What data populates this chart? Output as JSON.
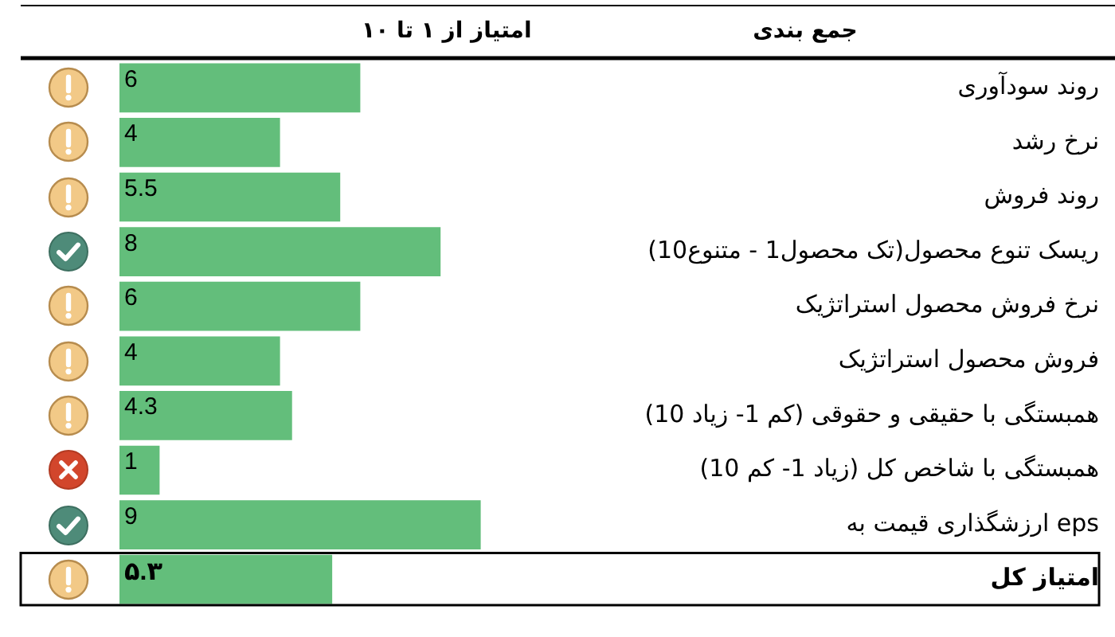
{
  "chart_data": {
    "type": "bar",
    "orientation": "horizontal",
    "xlabel": "امتیاز از ۱ تا ۱۰",
    "ylabel": "جمع بندی",
    "categories": [
      "روند سودآوری",
      "نرخ رشد",
      "روند فروش",
      "ریسک تنوع محصول(تک محصول1 - متنوع10)",
      "نرخ فروش محصول استراتژیک",
      "فروش محصول استراتژیک",
      "همبستگی با حقیقی و حقوقی (کم 1- زیاد 10)",
      "همبستگی با شاخص کل (زیاد 1- کم 10)",
      "ارزشگذاری قیمت به eps",
      "امتیاز کل"
    ],
    "values": [
      6,
      4,
      5.5,
      8,
      6,
      4,
      4.3,
      1,
      9,
      5.3
    ],
    "value_labels": [
      "6",
      "4",
      "5.5",
      "8",
      "6",
      "4",
      "4.3",
      "1",
      "9",
      "۵.۳"
    ],
    "color": "#63be7b",
    "tick_labels": "y"
  }
}
